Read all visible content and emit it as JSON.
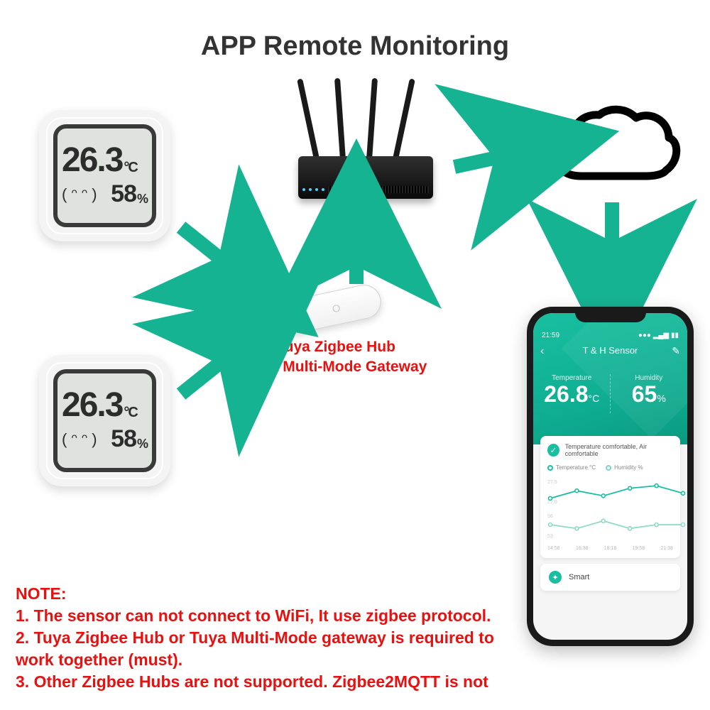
{
  "colors": {
    "arrow": "#15b392",
    "accent_red": "#e91010",
    "text_dark": "#333333",
    "phone_teal": "#19bfa0",
    "background": "#ffffff"
  },
  "title": "APP Remote Monitoring",
  "sensor": {
    "temperature": "26.3",
    "temp_unit": "°C",
    "humidity": "58",
    "humidity_unit": "%",
    "face": "( ᵔ ᵔ )"
  },
  "hub": {
    "line1": "Tuya Zigbee Hub",
    "line2": "Tuya Multi-Mode Gateway"
  },
  "phone": {
    "time": "21:59",
    "screen_title": "T & H Sensor",
    "temp_label": "Temperature",
    "temp_value": "26.8",
    "temp_unit": "°C",
    "hum_label": "Humidity",
    "hum_value": "65",
    "hum_unit": "%",
    "comfort_text": "Temperature comfortable, Air comfortable",
    "legend_temp": "Temperature °C",
    "legend_hum": "Humidity %",
    "chart_temp_y": [
      27.0,
      27.3,
      27.1,
      27.4,
      27.5,
      27.2
    ],
    "chart_hum_y": [
      55,
      54,
      56,
      54,
      55,
      55
    ],
    "x_labels": [
      "14:58",
      "16:38",
      "18:18",
      "19:58",
      "21:38"
    ],
    "smart_label": "Smart"
  },
  "arrows": {
    "color": "#15b392"
  },
  "notes": {
    "heading": "NOTE:",
    "items": [
      "1. The sensor can not connect to WiFi, It use zigbee protocol.",
      "2. Tuya Zigbee Hub or Tuya Multi-Mode gateway is required to work together (must).",
      "3. Other Zigbee Hubs are not supported. Zigbee2MQTT is not"
    ]
  }
}
